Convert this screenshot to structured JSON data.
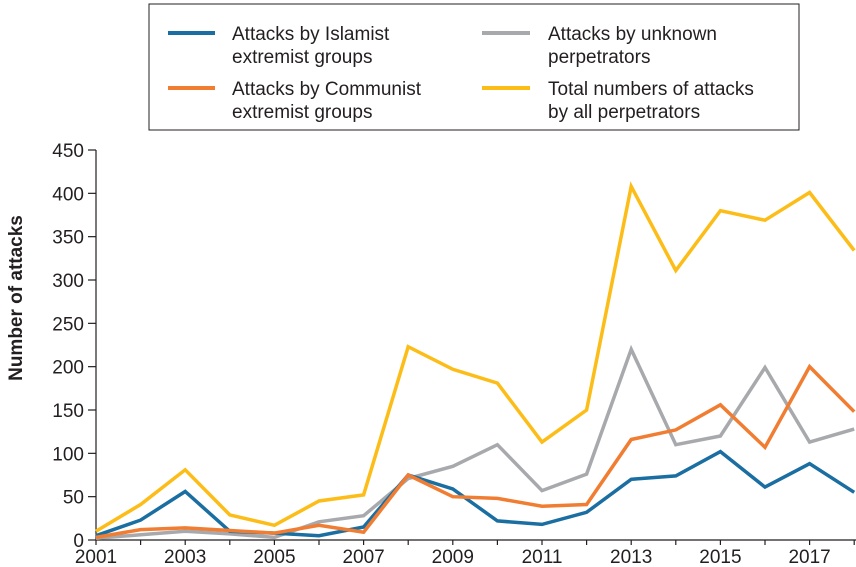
{
  "chart_data": {
    "type": "line",
    "title": "",
    "xlabel": "",
    "ylabel": "Number of attacks",
    "xlim": [
      2001,
      2018
    ],
    "ylim": [
      0,
      450
    ],
    "x_ticks": [
      "2001",
      "2003",
      "2005",
      "2007",
      "2009",
      "2011",
      "2013",
      "2015",
      "2017"
    ],
    "y_ticks": [
      "0",
      "50",
      "100",
      "150",
      "200",
      "250",
      "300",
      "350",
      "400",
      "450"
    ],
    "grid": false,
    "legend_position": "top",
    "x": [
      2001,
      2002,
      2003,
      2004,
      2005,
      2006,
      2007,
      2008,
      2009,
      2010,
      2011,
      2012,
      2013,
      2014,
      2015,
      2016,
      2017,
      2018
    ],
    "series": [
      {
        "name_lines": [
          "Attacks by Islamist",
          "extremist groups"
        ],
        "color": "#1a6ea1",
        "values": [
          5,
          23,
          56,
          10,
          8,
          5,
          15,
          75,
          59,
          22,
          18,
          32,
          70,
          74,
          102,
          61,
          88,
          55
        ]
      },
      {
        "name_lines": [
          "Attacks by Communist",
          "extremist groups"
        ],
        "color": "#f07d32",
        "values": [
          3,
          12,
          14,
          11,
          8,
          17,
          9,
          75,
          50,
          48,
          39,
          41,
          116,
          127,
          156,
          107,
          200,
          148
        ]
      },
      {
        "name_lines": [
          "Attacks by unknown",
          "perpetrators"
        ],
        "color": "#a7a9ac",
        "values": [
          2,
          6,
          10,
          7,
          3,
          21,
          28,
          71,
          85,
          110,
          57,
          76,
          220,
          110,
          120,
          199,
          113,
          128
        ]
      },
      {
        "name_lines": [
          "Total numbers of attacks",
          "by all perpetrators"
        ],
        "color": "#fdbd18",
        "values": [
          10,
          41,
          81,
          29,
          17,
          45,
          52,
          223,
          197,
          181,
          113,
          150,
          408,
          311,
          380,
          369,
          401,
          334
        ]
      }
    ]
  }
}
